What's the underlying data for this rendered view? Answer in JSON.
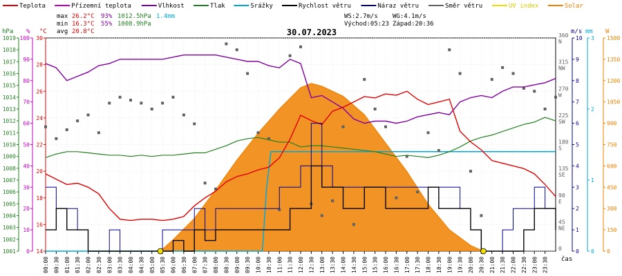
{
  "chart_data": {
    "type": "line",
    "title": "30.07.2023",
    "xlabel": "čas",
    "legend": [
      {
        "key": "teplota",
        "label": "Teplota",
        "color": "#e00000"
      },
      {
        "key": "pocitova",
        "label": "Přízemní teplota",
        "color": "#c000c0"
      },
      {
        "key": "vlhkost",
        "label": "Vlhkost",
        "color": "#8000a0"
      },
      {
        "key": "tlak",
        "label": "Tlak",
        "color": "#208020"
      },
      {
        "key": "srazky",
        "label": "Srážky",
        "color": "#00a8d8"
      },
      {
        "key": "rychlost",
        "label": "Rychlost větru",
        "color": "#000000"
      },
      {
        "key": "naraz",
        "label": "Náraz větru",
        "color": "#000090"
      },
      {
        "key": "smer",
        "label": "Směr větru",
        "color": "#606060"
      },
      {
        "key": "uv",
        "label": "UV index",
        "color": "#f0e000"
      },
      {
        "key": "solar",
        "label": "Solar",
        "color": "#f08000"
      }
    ],
    "stats": {
      "max_label": "max",
      "max_temp": "26.2°C",
      "max_hum": "93%",
      "max_press": "1012.5hPa",
      "rain": "1.4mm",
      "min_label": "min",
      "min_temp": "16.3°C",
      "min_hum": "55%",
      "min_press": "1008.9hPa",
      "avg_label": "avg",
      "avg_temp": "20.8°C"
    },
    "wind_info": {
      "ws": "WS:2.7m/s",
      "wg": "WG:4.1m/s",
      "sunrise": "Východ:05:23",
      "sunset": "Západ:20:36"
    },
    "axes": {
      "pressure": {
        "unit": "hPa",
        "range": [
          1001,
          1019
        ],
        "ticks": [
          1001,
          1002,
          1003,
          1004,
          1005,
          1006,
          1007,
          1008,
          1009,
          1010,
          1011,
          1012,
          1013,
          1014,
          1015,
          1016,
          1017,
          1018,
          1019
        ]
      },
      "humidity": {
        "unit": "%",
        "range": [
          0,
          100
        ],
        "ticks": [
          0,
          10,
          20,
          30,
          40,
          50,
          60,
          70,
          80,
          90,
          100
        ]
      },
      "temperature": {
        "unit": "°C",
        "range": [
          14,
          30
        ],
        "ticks": [
          14,
          16,
          18,
          20,
          22,
          24,
          26,
          28,
          30
        ]
      },
      "wind_speed": {
        "unit": "m/s",
        "range": [
          0,
          10
        ],
        "ticks": [
          0,
          1,
          2,
          3,
          4,
          5,
          6,
          7,
          8,
          9,
          10
        ]
      },
      "rain": {
        "unit": "mm",
        "range": [
          0,
          3
        ],
        "ticks": [
          0,
          1,
          2,
          3
        ]
      },
      "direction": {
        "ticks": [
          "0",
          "45 NE",
          "90 E",
          "135 SE",
          "180 S",
          "225 SW",
          "270 W",
          "315 NW",
          "360 N"
        ]
      },
      "solar": {
        "unit": "W",
        "range": [
          0,
          1500
        ],
        "ticks": [
          0,
          150,
          300,
          450,
          600,
          750,
          900,
          1050,
          1200,
          1350,
          1500
        ]
      }
    },
    "x_ticks": [
      "00:00",
      "00:30",
      "01:00",
      "01:30",
      "02:00",
      "02:30",
      "03:00",
      "03:30",
      "04:00",
      "04:30",
      "05:00",
      "05:30",
      "06:00",
      "06:30",
      "07:00",
      "07:30",
      "08:00",
      "08:30",
      "09:00",
      "09:30",
      "10:00",
      "10:30",
      "11:00",
      "11:30",
      "12:00",
      "12:30",
      "13:00",
      "13:30",
      "14:00",
      "14:30",
      "15:00",
      "15:30",
      "16:00",
      "16:30",
      "17:00",
      "17:30",
      "18:00",
      "18:30",
      "19:00",
      "19:30",
      "20:00",
      "20:30",
      "21:00",
      "21:30",
      "22:00",
      "22:30",
      "23:00",
      "23:30"
    ],
    "series": {
      "teplota": {
        "x": [
          0,
          0.5,
          1,
          1.5,
          2,
          2.5,
          3,
          3.5,
          4,
          4.5,
          5,
          5.5,
          6,
          6.5,
          7,
          7.5,
          8,
          8.5,
          9,
          9.5,
          10,
          10.5,
          11,
          11.5,
          12,
          12.5,
          13,
          13.5,
          14,
          14.5,
          15,
          15.5,
          16,
          16.5,
          17,
          17.5,
          18,
          18.5,
          19,
          19.5,
          20,
          20.5,
          21,
          21.5,
          22,
          22.5,
          23,
          23.5,
          24
        ],
        "values": [
          19.8,
          19.4,
          19.0,
          19.1,
          18.8,
          18.3,
          17.2,
          16.4,
          16.3,
          16.4,
          16.4,
          16.3,
          16.4,
          16.6,
          17.4,
          18.0,
          18.5,
          19.2,
          19.6,
          19.8,
          20.1,
          20.3,
          21.0,
          22.4,
          24.2,
          23.8,
          23.5,
          24.5,
          24.8,
          25.2,
          25.6,
          25.5,
          25.8,
          25.7,
          26.0,
          25.4,
          25.0,
          25.2,
          25.4,
          23.0,
          22.2,
          21.6,
          20.8,
          20.6,
          20.4,
          20.2,
          19.8,
          19.0,
          18.1
        ]
      },
      "vlhkost": {
        "x": [
          0,
          0.5,
          1,
          1.5,
          2,
          2.5,
          3,
          3.5,
          4,
          4.5,
          5,
          5.5,
          6,
          6.5,
          7,
          7.5,
          8,
          8.5,
          9,
          9.5,
          10,
          10.5,
          11,
          11.5,
          12,
          12.5,
          13,
          13.5,
          14,
          14.5,
          15,
          15.5,
          16,
          16.5,
          17,
          17.5,
          18,
          18.5,
          19,
          19.5,
          20,
          20.5,
          21,
          21.5,
          22,
          22.5,
          23,
          23.5,
          24
        ],
        "values": [
          88,
          86,
          80,
          82,
          84,
          87,
          88,
          90,
          90,
          90,
          90,
          90,
          91,
          92,
          92,
          92,
          92,
          91,
          90,
          89,
          89,
          87,
          86,
          90,
          88,
          72,
          73,
          70,
          67,
          62,
          60,
          61,
          61,
          60,
          61,
          63,
          64,
          65,
          64,
          70,
          72,
          73,
          72,
          75,
          77,
          77,
          78,
          79,
          81
        ]
      },
      "tlak": {
        "x": [
          0,
          0.5,
          1,
          1.5,
          2,
          2.5,
          3,
          3.5,
          4,
          4.5,
          5,
          5.5,
          6,
          6.5,
          7,
          7.5,
          8,
          8.5,
          9,
          9.5,
          10,
          10.5,
          11,
          11.5,
          12,
          12.5,
          13,
          13.5,
          14,
          14.5,
          15,
          15.5,
          16,
          16.5,
          17,
          17.5,
          18,
          18.5,
          19,
          19.5,
          20,
          20.5,
          21,
          21.5,
          22,
          22.5,
          23,
          23.5,
          24
        ],
        "values": [
          1008.9,
          1009.2,
          1009.4,
          1009.4,
          1009.3,
          1009.2,
          1009.1,
          1009.1,
          1009.0,
          1009.1,
          1009.0,
          1009.1,
          1009.1,
          1009.2,
          1009.3,
          1009.3,
          1009.6,
          1009.9,
          1010.3,
          1010.5,
          1010.6,
          1010.4,
          1010.2,
          1010.2,
          1009.8,
          1009.9,
          1009.9,
          1009.8,
          1009.7,
          1009.6,
          1009.5,
          1009.4,
          1009.2,
          1009.0,
          1009.1,
          1009.0,
          1008.9,
          1009.1,
          1009.4,
          1009.8,
          1010.3,
          1010.6,
          1010.8,
          1011.1,
          1011.4,
          1011.7,
          1011.9,
          1012.3,
          1012.0
        ]
      },
      "srazky": {
        "x": [
          0,
          10.2,
          10.4,
          10.6,
          10.8,
          24
        ],
        "values": [
          0,
          0,
          0.9,
          1.4,
          1.4,
          1.4
        ]
      },
      "solar": {
        "x": [
          5.4,
          6,
          7,
          8,
          9,
          10,
          11,
          12,
          12.5,
          13,
          14,
          15,
          16,
          17,
          18,
          19,
          20,
          20.6
        ],
        "values": [
          0,
          80,
          230,
          430,
          640,
          830,
          1000,
          1150,
          1180,
          1160,
          1090,
          960,
          760,
          560,
          330,
          150,
          40,
          0
        ]
      },
      "rychlost": {
        "x": [
          0,
          0.5,
          1,
          1.5,
          2,
          2.5,
          3,
          3.5,
          4,
          4.5,
          5,
          5.5,
          6,
          6.5,
          7,
          7.5,
          8,
          8.5,
          9,
          9.5,
          10,
          10.5,
          11,
          11.5,
          12,
          12.5,
          13,
          13.5,
          14,
          14.5,
          15,
          15.5,
          16,
          16.5,
          17,
          17.5,
          18,
          18.5,
          19,
          19.5,
          20,
          20.5,
          21,
          21.5,
          22,
          22.5,
          23,
          23.5,
          24
        ],
        "values": [
          1,
          2,
          1,
          1,
          0,
          0,
          0,
          0,
          0,
          0,
          0,
          0,
          0.5,
          0,
          1,
          0.5,
          1,
          1,
          1,
          1,
          1,
          1,
          1,
          2,
          2,
          4,
          3,
          3,
          2,
          2,
          3,
          3,
          2,
          2,
          2,
          2,
          3,
          2,
          2,
          2,
          1,
          0,
          0,
          0,
          0,
          1,
          2,
          2,
          1
        ]
      },
      "naraz": {
        "x": [
          0,
          0.5,
          1,
          1.5,
          2,
          2.5,
          3,
          3.5,
          4,
          4.5,
          5,
          5.5,
          6,
          6.5,
          7,
          7.5,
          8,
          8.5,
          9,
          9.5,
          10,
          10.5,
          11,
          11.5,
          12,
          12.5,
          13,
          13.5,
          14,
          14.5,
          15,
          15.5,
          16,
          16.5,
          17,
          17.5,
          18,
          18.5,
          19,
          19.5,
          20,
          20.5,
          21,
          21.5,
          22,
          22.5,
          23,
          23.5,
          24
        ],
        "values": [
          3,
          2,
          2,
          1,
          0,
          0,
          1,
          0,
          0,
          0,
          0,
          1,
          1,
          1,
          2,
          1,
          2,
          2,
          2,
          2,
          2,
          2,
          3,
          3,
          4,
          6,
          4,
          3,
          3,
          3,
          3,
          3,
          3,
          3,
          3,
          3,
          3,
          3,
          3,
          2,
          1,
          0,
          0,
          1,
          2,
          2,
          3,
          2,
          2
        ]
      },
      "smer": {
        "x": [
          0,
          0.5,
          1,
          1.5,
          2,
          2.5,
          3,
          3.5,
          4,
          4.5,
          5,
          5.5,
          6,
          6.5,
          7,
          7.5,
          8,
          8.5,
          9,
          9.5,
          10,
          10.5,
          11,
          11.5,
          12,
          12.5,
          13,
          13.5,
          14,
          14.5,
          15,
          15.5,
          16,
          16.5,
          17,
          17.5,
          18,
          18.5,
          19,
          19.5,
          20,
          20.5,
          21,
          21.5,
          22,
          22.5,
          23,
          23.5,
          24
        ],
        "values": [
          210,
          190,
          205,
          220,
          230,
          200,
          250,
          260,
          255,
          250,
          240,
          250,
          260,
          230,
          215,
          115,
          105,
          350,
          340,
          300,
          200,
          190,
          70,
          330,
          345,
          80,
          60,
          85,
          210,
          45,
          290,
          240,
          210,
          90,
          160,
          100,
          200,
          170,
          340,
          300,
          135,
          60,
          290,
          310,
          300,
          275,
          270,
          240,
          260
        ]
      },
      "uv": {
        "x": [
          5.4,
          20.6
        ],
        "values": [
          0,
          0
        ]
      }
    }
  }
}
